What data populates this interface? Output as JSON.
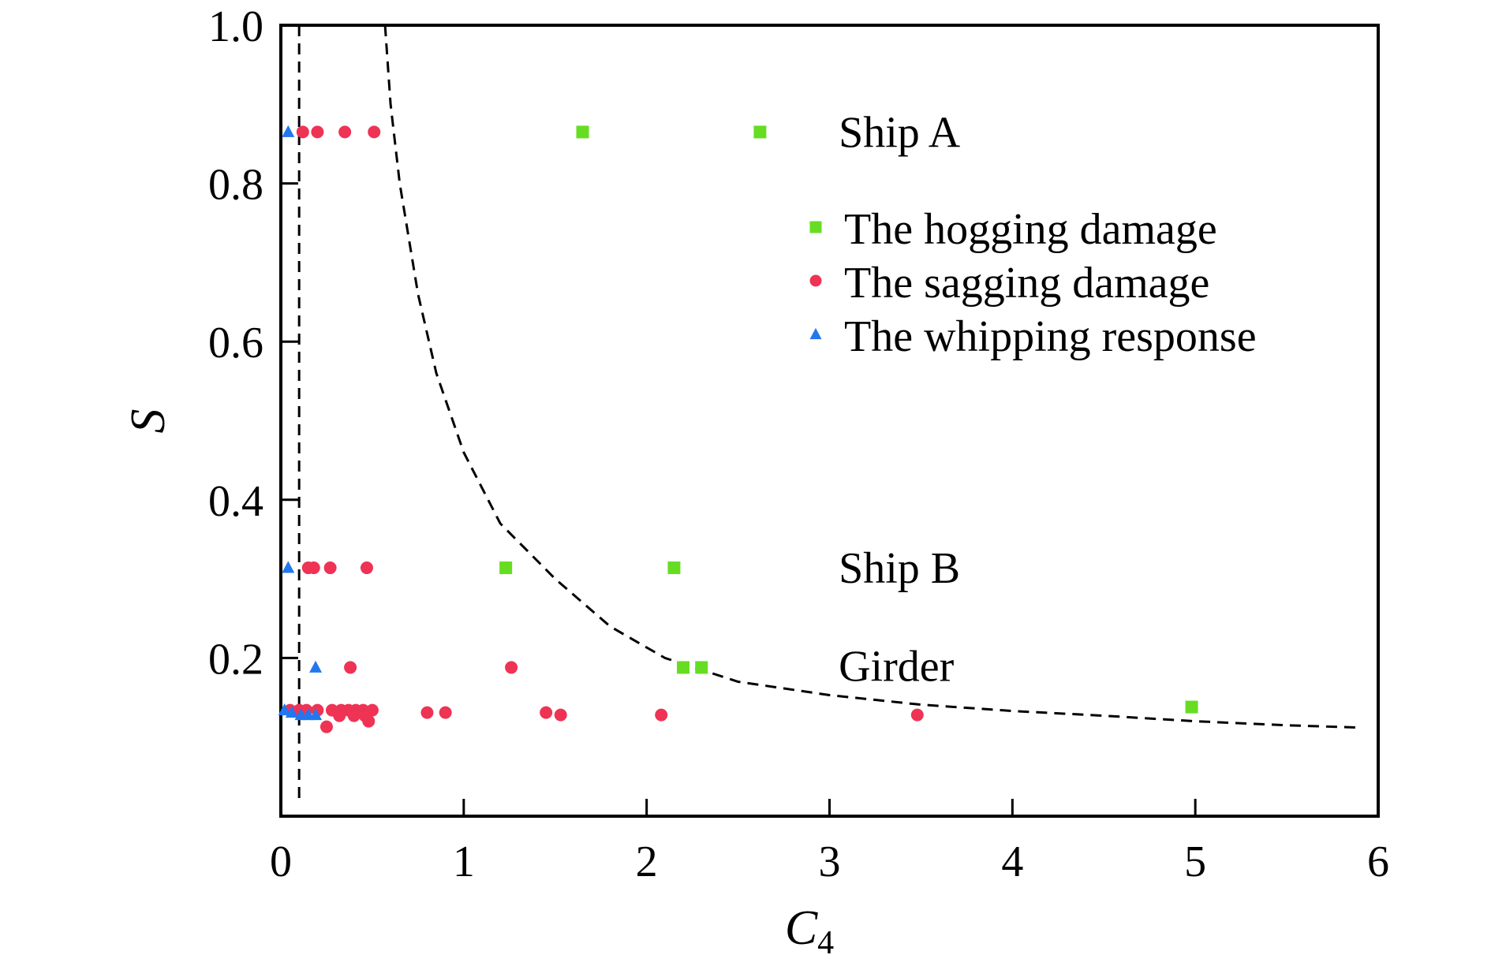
{
  "chart_data": {
    "type": "scatter",
    "xlabel": "C",
    "xlabel_subscript": "4",
    "ylabel": "S",
    "xlim": [
      0,
      6
    ],
    "ylim": [
      0,
      1.0
    ],
    "x_ticks": [
      0,
      1,
      2,
      3,
      4,
      5,
      6
    ],
    "y_ticks": [
      0.2,
      0.4,
      0.6,
      0.8,
      1.0
    ],
    "x_tick_labels": [
      "0",
      "1",
      "2",
      "3",
      "4",
      "5",
      "6"
    ],
    "y_tick_labels": [
      "0.2",
      "0.4",
      "0.6",
      "0.8",
      "1.0"
    ],
    "grid": false,
    "legend_placement": "right",
    "series": [
      {
        "name": "The hogging damage",
        "color": "#66dd22",
        "marker": "square",
        "points": [
          [
            1.65,
            0.865
          ],
          [
            2.62,
            0.865
          ],
          [
            1.23,
            0.314
          ],
          [
            2.15,
            0.314
          ],
          [
            2.2,
            0.188
          ],
          [
            2.3,
            0.188
          ],
          [
            4.98,
            0.138
          ]
        ]
      },
      {
        "name": "The sagging damage",
        "color": "#ee3355",
        "marker": "circle",
        "points": [
          [
            0.12,
            0.865
          ],
          [
            0.2,
            0.865
          ],
          [
            0.35,
            0.865
          ],
          [
            0.51,
            0.865
          ],
          [
            0.15,
            0.314
          ],
          [
            0.18,
            0.314
          ],
          [
            0.27,
            0.314
          ],
          [
            0.47,
            0.314
          ],
          [
            0.38,
            0.188
          ],
          [
            1.26,
            0.188
          ],
          [
            0.05,
            0.134
          ],
          [
            0.1,
            0.134
          ],
          [
            0.14,
            0.134
          ],
          [
            0.2,
            0.134
          ],
          [
            0.28,
            0.134
          ],
          [
            0.33,
            0.134
          ],
          [
            0.37,
            0.134
          ],
          [
            0.41,
            0.134
          ],
          [
            0.45,
            0.134
          ],
          [
            0.5,
            0.134
          ],
          [
            0.32,
            0.127
          ],
          [
            0.4,
            0.127
          ],
          [
            0.46,
            0.127
          ],
          [
            0.48,
            0.12
          ],
          [
            0.25,
            0.113
          ],
          [
            0.8,
            0.131
          ],
          [
            0.9,
            0.131
          ],
          [
            1.45,
            0.131
          ],
          [
            1.53,
            0.128
          ],
          [
            2.08,
            0.128
          ],
          [
            3.48,
            0.128
          ]
        ]
      },
      {
        "name": "The whipping response",
        "color": "#2277ee",
        "marker": "triangle",
        "points": [
          [
            0.04,
            0.865
          ],
          [
            0.04,
            0.314
          ],
          [
            0.19,
            0.188
          ],
          [
            0.02,
            0.134
          ],
          [
            0.06,
            0.131
          ],
          [
            0.11,
            0.128
          ],
          [
            0.15,
            0.128
          ],
          [
            0.19,
            0.128
          ]
        ]
      }
    ],
    "reference_lines": [
      {
        "style": "dashed",
        "kind": "vertical",
        "x": 0.1
      },
      {
        "style": "dashed",
        "kind": "curve",
        "points": [
          [
            0.57,
            1.0
          ],
          [
            0.6,
            0.9
          ],
          [
            0.65,
            0.8
          ],
          [
            0.75,
            0.66
          ],
          [
            0.85,
            0.56
          ],
          [
            1.0,
            0.46
          ],
          [
            1.2,
            0.37
          ],
          [
            1.5,
            0.3
          ],
          [
            1.8,
            0.24
          ],
          [
            2.1,
            0.2
          ],
          [
            2.5,
            0.17
          ],
          [
            3.0,
            0.153
          ],
          [
            3.5,
            0.141
          ],
          [
            4.0,
            0.133
          ],
          [
            4.5,
            0.127
          ],
          [
            5.0,
            0.12
          ],
          [
            5.5,
            0.115
          ],
          [
            5.9,
            0.112
          ]
        ]
      }
    ],
    "annotations": [
      {
        "text": "Ship A",
        "x": 3.05,
        "y": 0.865
      },
      {
        "text": "Ship B",
        "x": 3.05,
        "y": 0.314
      },
      {
        "text": "Girder",
        "x": 3.05,
        "y": 0.19
      }
    ]
  }
}
